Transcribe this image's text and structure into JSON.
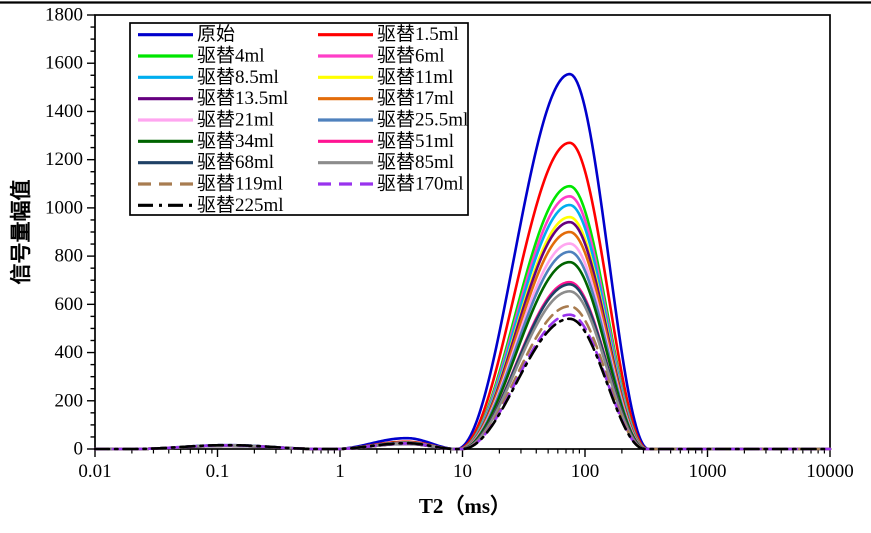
{
  "chart_data": {
    "type": "line",
    "title": "",
    "x_axis": {
      "label": "T2（ms）",
      "scale": "log",
      "min": 0.01,
      "max": 10000,
      "major_ticks": [
        "0.01",
        "0.1",
        "1",
        "10",
        "100",
        "1000",
        "10000"
      ],
      "minor_ticks": "log decades 2-9"
    },
    "y_axis": {
      "label": "信号量幅值",
      "min": 0,
      "max": 1800,
      "major_tick_step": 200,
      "minor_tick_step": 50,
      "major_ticks": [
        "0",
        "200",
        "400",
        "600",
        "800",
        "1000",
        "1200",
        "1400",
        "1600",
        "1800"
      ]
    },
    "legend": {
      "position": "top-left",
      "columns": 2,
      "border": "#000000"
    },
    "shape": {
      "main_peak": {
        "center_ms": 75,
        "left_zero_ms": 9,
        "right_zero_ms": 330
      },
      "secondary_bump": {
        "center_ms": 3.5,
        "left_zero_ms": 0.9,
        "right_zero_ms": 9
      },
      "small_bump": {
        "center_ms": 0.12,
        "left_zero_ms": 0.02,
        "right_zero_ms": 0.7
      }
    },
    "series": [
      {
        "label": "原始",
        "color": "#0000CC",
        "dash": "solid",
        "peak_value": 1555,
        "small_bump": 16,
        "secondary_bump": 45
      },
      {
        "label": "驱替1.5ml",
        "color": "#FF0000",
        "dash": "solid",
        "peak_value": 1270,
        "small_bump": 15,
        "secondary_bump": 30
      },
      {
        "label": "驱替4ml",
        "color": "#00E600",
        "dash": "solid",
        "peak_value": 1090,
        "small_bump": 15,
        "secondary_bump": 27
      },
      {
        "label": "驱替6ml",
        "color": "#FF3EC8",
        "dash": "solid",
        "peak_value": 1048,
        "small_bump": 15,
        "secondary_bump": 26
      },
      {
        "label": "驱替8.5ml",
        "color": "#00AEEF",
        "dash": "solid",
        "peak_value": 1012,
        "small_bump": 15,
        "secondary_bump": 25
      },
      {
        "label": "驱替11ml",
        "color": "#FFFF00",
        "dash": "solid",
        "peak_value": 962,
        "small_bump": 14,
        "secondary_bump": 24
      },
      {
        "label": "驱替13.5ml",
        "color": "#660080",
        "dash": "solid",
        "peak_value": 941,
        "small_bump": 14,
        "secondary_bump": 24
      },
      {
        "label": "驱替17ml",
        "color": "#E36C0A",
        "dash": "solid",
        "peak_value": 900,
        "small_bump": 14,
        "secondary_bump": 23
      },
      {
        "label": "驱替21ml",
        "color": "#FFA6F0",
        "dash": "solid",
        "peak_value": 852,
        "small_bump": 14,
        "secondary_bump": 23
      },
      {
        "label": "驱替25.5ml",
        "color": "#4F81BD",
        "dash": "solid",
        "peak_value": 818,
        "small_bump": 14,
        "secondary_bump": 22
      },
      {
        "label": "驱替34ml",
        "color": "#006400",
        "dash": "solid",
        "peak_value": 775,
        "small_bump": 13,
        "secondary_bump": 22
      },
      {
        "label": "驱替51ml",
        "color": "#FF1493",
        "dash": "solid",
        "peak_value": 692,
        "small_bump": 13,
        "secondary_bump": 21
      },
      {
        "label": "驱替68ml",
        "color": "#1F4166",
        "dash": "solid",
        "peak_value": 683,
        "small_bump": 13,
        "secondary_bump": 21
      },
      {
        "label": "驱替85ml",
        "color": "#8C8C8C",
        "dash": "solid",
        "peak_value": 654,
        "small_bump": 14,
        "secondary_bump": 22
      },
      {
        "label": "驱替119ml",
        "color": "#A87C50",
        "dash": "dashed",
        "peak_value": 592,
        "small_bump": 15,
        "secondary_bump": 23
      },
      {
        "label": "驱替170ml",
        "color": "#9933EE",
        "dash": "dashed",
        "peak_value": 557,
        "small_bump": 15,
        "secondary_bump": 23
      },
      {
        "label": "驱替225ml",
        "color": "#000000",
        "dash": "dashdot",
        "peak_value": 540,
        "small_bump": 16,
        "secondary_bump": 24
      }
    ]
  }
}
